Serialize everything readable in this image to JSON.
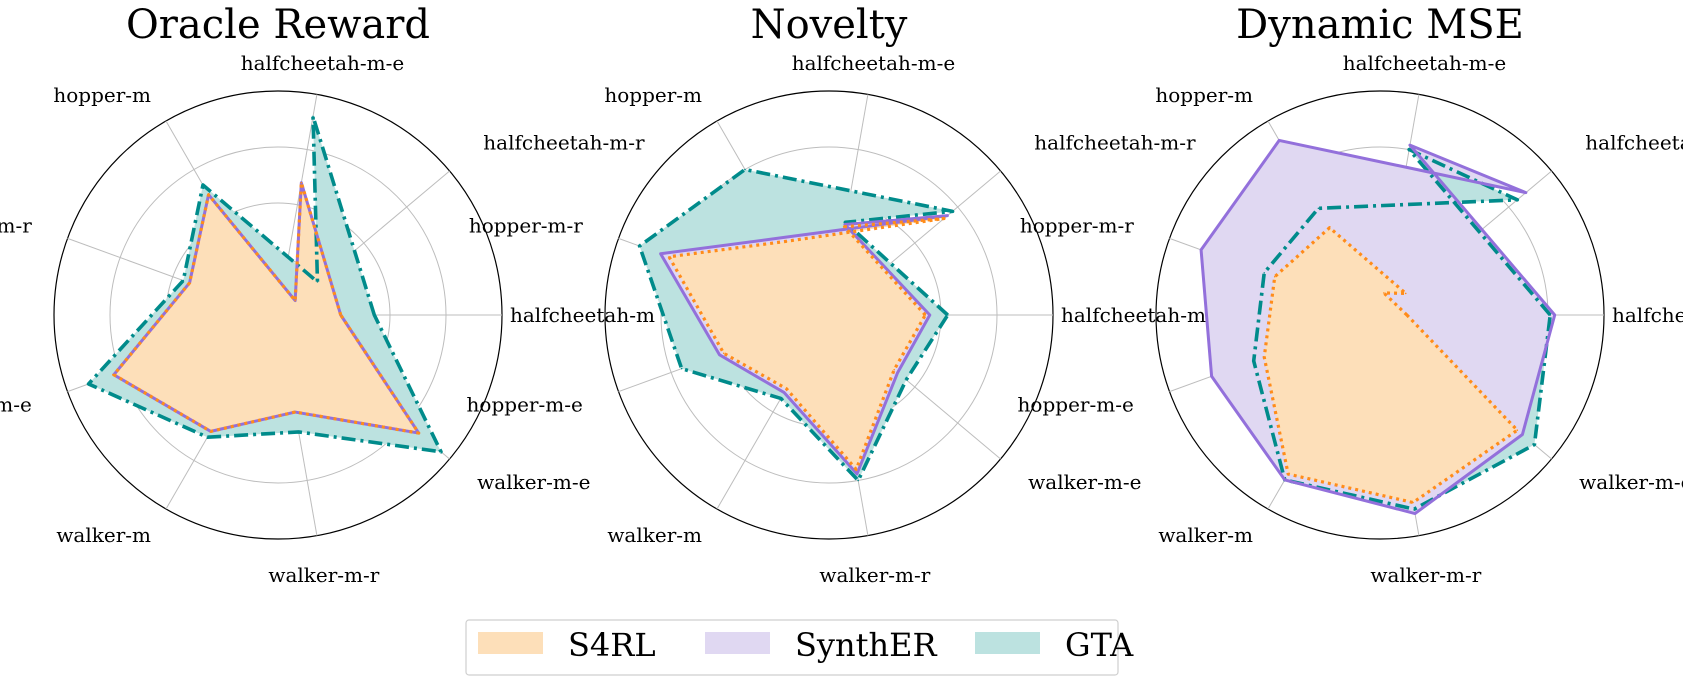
{
  "legend": {
    "items": [
      {
        "label": "S4RL",
        "color": "#fddfb9"
      },
      {
        "label": "SynthER",
        "color": "#e0d8f2"
      },
      {
        "label": "GTA",
        "color": "#bce2e0"
      }
    ]
  },
  "colors": {
    "S4RL_line": "#ff8c1a",
    "SynthER_line": "#9370db",
    "GTA_line": "#008b8b"
  },
  "chart_data": [
    {
      "type": "radar",
      "title": "Oracle Reward",
      "categories": [
        "halfcheetah-m",
        "halfcheetah-m-e",
        "halfcheetah-m-r",
        "hopper-m",
        "hopper-m-r",
        "hopper-m-e",
        "walker-m",
        "walker-m-r",
        "walker-m-e"
      ],
      "scale_max": 1.0,
      "grid_levels": [
        0.25,
        0.5,
        0.75,
        1.0
      ],
      "series": [
        {
          "name": "S4RL",
          "values": [
            0.28,
            0.6,
            0.1,
            0.62,
            0.42,
            0.78,
            0.6,
            0.44,
            0.82
          ]
        },
        {
          "name": "SynthER",
          "values": [
            0.28,
            0.6,
            0.1,
            0.62,
            0.42,
            0.78,
            0.6,
            0.44,
            0.82
          ]
        },
        {
          "name": "GTA",
          "values": [
            0.43,
            0.9,
            0.23,
            0.67,
            0.45,
            0.9,
            0.63,
            0.53,
            0.95
          ]
        }
      ]
    },
    {
      "type": "radar",
      "title": "Novelty",
      "categories": [
        "halfcheetah-m",
        "halfcheetah-m-e",
        "halfcheetah-m-r",
        "hopper-m",
        "hopper-m-r",
        "hopper-m-e",
        "walker-m",
        "walker-m-r",
        "walker-m-e"
      ],
      "scale_max": 1.0,
      "grid_levels": [
        0.25,
        0.5,
        0.75,
        1.0
      ],
      "series": [
        {
          "name": "S4RL",
          "values": [
            0.43,
            0.4,
            0.67,
            0.38,
            0.76,
            0.5,
            0.38,
            0.7,
            0.38
          ]
        },
        {
          "name": "SynthER",
          "values": [
            0.45,
            0.41,
            0.69,
            0.4,
            0.8,
            0.52,
            0.4,
            0.72,
            0.4
          ]
        },
        {
          "name": "GTA",
          "values": [
            0.53,
            0.42,
            0.72,
            0.75,
            0.9,
            0.7,
            0.43,
            0.75,
            0.45
          ]
        }
      ]
    },
    {
      "type": "radar",
      "title": "Dynamic MSE",
      "categories": [
        "halfcheetah-m",
        "halfcheetah-m-e",
        "halfcheetah-m-r",
        "hopper-m",
        "hopper-m-r",
        "hopper-m-e",
        "walker-m",
        "walker-m-r",
        "walker-m-e"
      ],
      "scale_max": 1.0,
      "grid_levels": [
        0.25,
        0.5,
        0.75,
        1.0
      ],
      "series": [
        {
          "name": "S4RL",
          "values": [
            0.12,
            0.1,
            0.15,
            0.45,
            0.5,
            0.55,
            0.82,
            0.85,
            0.8
          ]
        },
        {
          "name": "SynthER",
          "values": [
            0.78,
            0.77,
            0.85,
            0.9,
            0.85,
            0.8,
            0.85,
            0.9,
            0.83
          ]
        },
        {
          "name": "GTA",
          "values": [
            0.76,
            0.75,
            0.8,
            0.55,
            0.55,
            0.6,
            0.85,
            0.88,
            0.9
          ]
        }
      ]
    }
  ]
}
